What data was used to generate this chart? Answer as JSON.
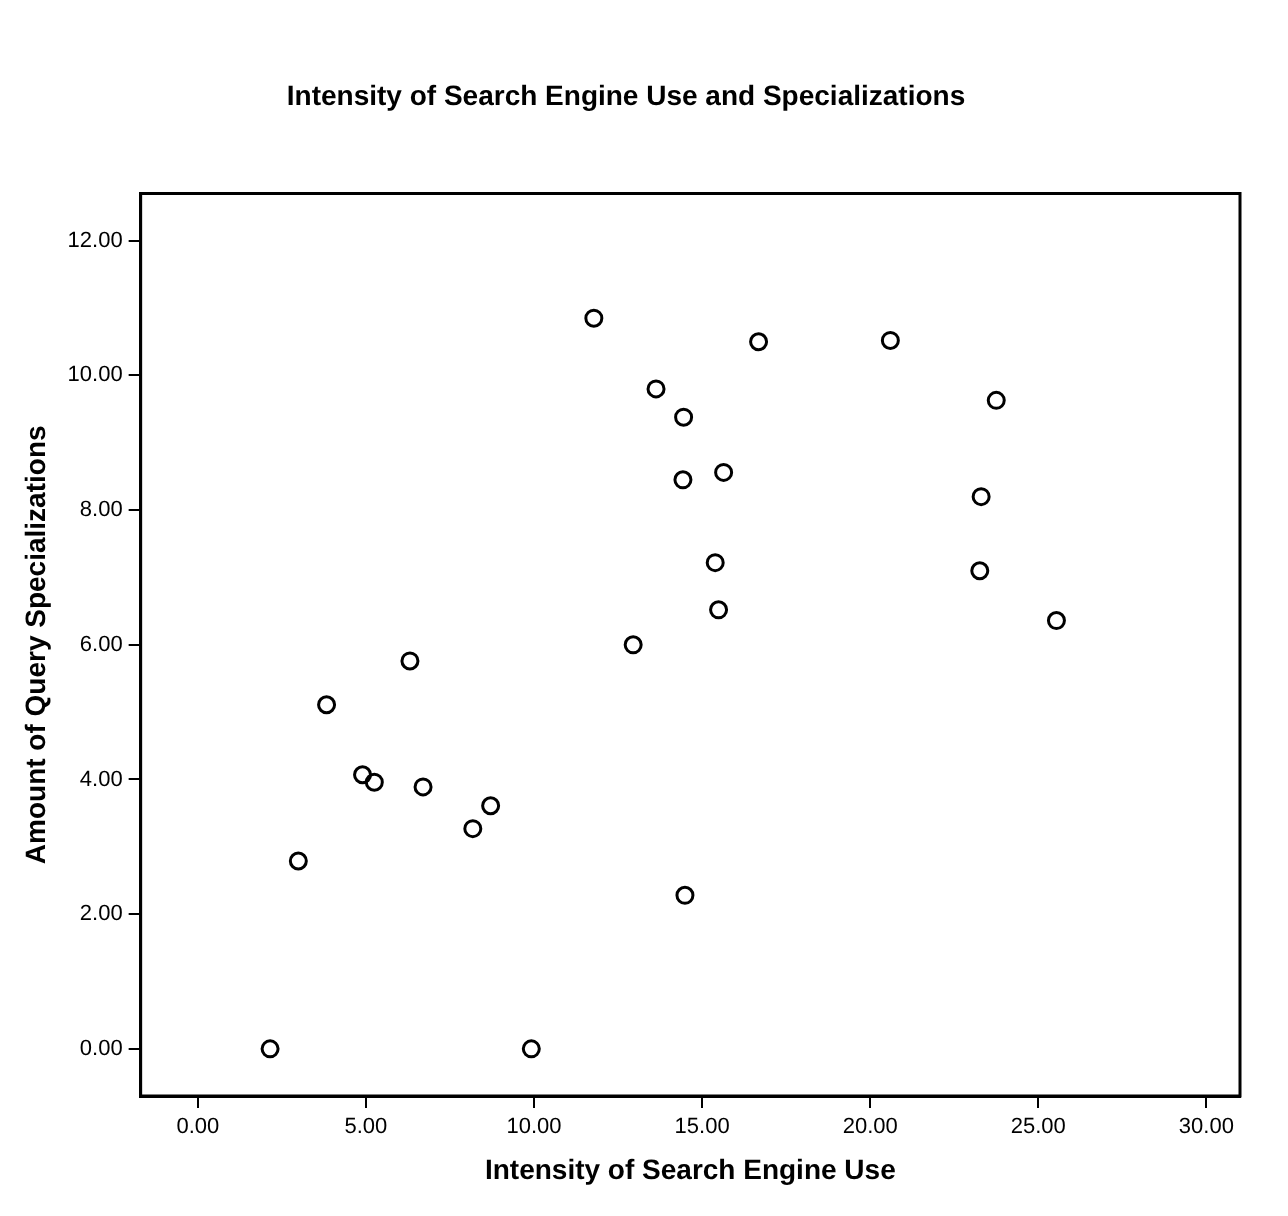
{
  "chart_data": {
    "type": "scatter",
    "title": "Intensity of Search Engine Use and Specializations",
    "xlabel": "Intensity of Search Engine Use",
    "ylabel": "Amount of Query Specializations",
    "marker": "circle",
    "series": [
      {
        "color": "#000000",
        "x": [
          11.78,
          6.31,
          3.83,
          4.9,
          5.25,
          6.7,
          8.71,
          8.18,
          2.99,
          2.15,
          9.92,
          16.68,
          20.6,
          13.63,
          14.45,
          23.75,
          14.43,
          15.64,
          23.3,
          15.39,
          23.26,
          15.49,
          25.54,
          12.95,
          14.49
        ],
        "values": [
          10.85,
          5.76,
          5.11,
          4.07,
          3.96,
          3.89,
          3.61,
          3.27,
          2.79,
          0,
          0,
          10.5,
          10.52,
          9.8,
          9.38,
          9.63,
          8.45,
          8.56,
          8.2,
          7.22,
          7.1,
          6.52,
          6.36,
          6.0,
          2.28
        ]
      }
    ],
    "xlim": [
      -1.7,
      31
    ],
    "ylim": [
      -0.7,
      12.7
    ],
    "xticks": [
      {
        "value": 0,
        "label": "0.00"
      },
      {
        "value": 5,
        "label": "5.00"
      },
      {
        "value": 10,
        "label": "10.00"
      },
      {
        "value": 15,
        "label": "15.00"
      },
      {
        "value": 20,
        "label": "20.00"
      },
      {
        "value": 25,
        "label": "25.00"
      },
      {
        "value": 30,
        "label": "30.00"
      }
    ],
    "yticks": [
      {
        "value": 0,
        "label": "0.00"
      },
      {
        "value": 2,
        "label": "2.00"
      },
      {
        "value": 4,
        "label": "4.00"
      },
      {
        "value": 6,
        "label": "6.00"
      },
      {
        "value": 8,
        "label": "8.00"
      },
      {
        "value": 10,
        "label": "10.00"
      },
      {
        "value": 12,
        "label": "12.00"
      }
    ],
    "grid": false,
    "legend": false
  }
}
